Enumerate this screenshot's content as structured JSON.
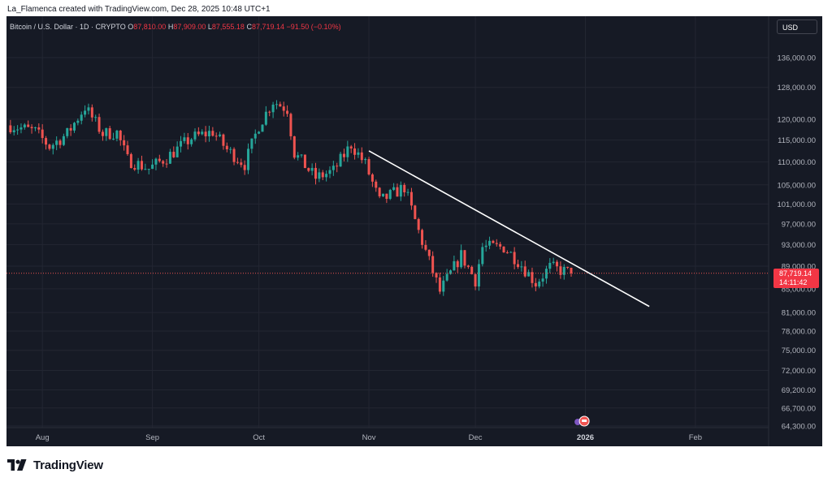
{
  "caption": "La_Flamenca created with TradingView.com, Dec 28, 2025 10:48 UTC+1",
  "legend": {
    "symbol": "Bitcoin / U.S. Dollar · 1D · CRYPTO",
    "open_label": "O",
    "open": "87,810.00",
    "high_label": "H",
    "high": "87,909.00",
    "low_label": "L",
    "low": "87,555.18",
    "close_label": "C",
    "close": "87,719.14",
    "change": "−91.50 (−0.10%)"
  },
  "currency": "USD",
  "last_price": {
    "price": "87,719.14",
    "countdown": "14:11:42"
  },
  "brand": "TradingView",
  "colors": {
    "up": "#26a69a",
    "down": "#ef5350",
    "background": "#161a25",
    "grid": "#232632",
    "axis_text": "#b2b5be",
    "trendline": "#ffffff"
  },
  "chart_data": {
    "type": "candlestick",
    "scale": "log",
    "grid": true,
    "x_ticks": [
      "Aug",
      "Sep",
      "Oct",
      "Nov",
      "Dec",
      "2026",
      "Feb"
    ],
    "y_ticks": [
      "136,000.00",
      "128,000.00",
      "120,000.00",
      "115,000.00",
      "110,000.00",
      "105,000.00",
      "101,000.00",
      "97,000.00",
      "93,000.00",
      "89,000.00",
      "85,000.00",
      "81,000.00",
      "78,000.00",
      "75,000.00",
      "72,000.00",
      "69,200.00",
      "66,700.00",
      "64,300.00"
    ],
    "y_tick_values": [
      136000,
      128000,
      120000,
      115000,
      110000,
      105000,
      101000,
      97000,
      93000,
      89000,
      85000,
      81000,
      78000,
      75000,
      72000,
      69200,
      66700,
      64300
    ],
    "ylim": [
      63000,
      142000
    ],
    "trendline": {
      "from": [
        "2025-11-01",
        112500
      ],
      "to": [
        "2026-01-19",
        82000
      ]
    },
    "last_close": 87719.14,
    "weekly_path": [
      [
        "2025-07-23",
        118500
      ],
      [
        "2025-07-30",
        117000
      ],
      [
        "2025-08-03",
        113500
      ],
      [
        "2025-08-08",
        116500
      ],
      [
        "2025-08-13",
        123000
      ],
      [
        "2025-08-18",
        116500
      ],
      [
        "2025-08-22",
        116800
      ],
      [
        "2025-08-25",
        110500
      ],
      [
        "2025-08-31",
        108500
      ],
      [
        "2025-09-05",
        111000
      ],
      [
        "2025-09-12",
        115500
      ],
      [
        "2025-09-18",
        117000
      ],
      [
        "2025-09-22",
        112800
      ],
      [
        "2025-09-27",
        109500
      ],
      [
        "2025-10-01",
        118500
      ],
      [
        "2025-10-05",
        124500
      ],
      [
        "2025-10-09",
        122500
      ],
      [
        "2025-10-11",
        112000
      ],
      [
        "2025-10-17",
        106500
      ],
      [
        "2025-10-22",
        108000
      ],
      [
        "2025-10-27",
        114000
      ],
      [
        "2025-10-31",
        109500
      ],
      [
        "2025-11-04",
        101500
      ],
      [
        "2025-11-11",
        104500
      ],
      [
        "2025-11-15",
        95500
      ],
      [
        "2025-11-21",
        84500
      ],
      [
        "2025-11-27",
        91000
      ],
      [
        "2025-12-01",
        86500
      ],
      [
        "2025-12-03",
        92500
      ],
      [
        "2025-12-09",
        92500
      ],
      [
        "2025-12-13",
        90000
      ],
      [
        "2025-12-18",
        86000
      ],
      [
        "2025-12-22",
        88800
      ],
      [
        "2025-12-28",
        87719
      ]
    ]
  }
}
